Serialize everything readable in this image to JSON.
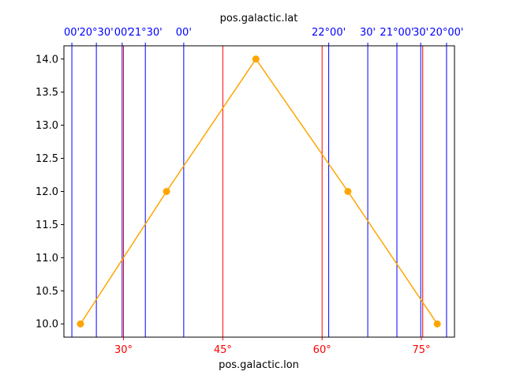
{
  "chart_data": {
    "type": "line",
    "title": "",
    "xlabel": "pos.galactic.lon",
    "top_axis_label": "pos.galactic.lat",
    "ylabel": "",
    "xlim": [
      21,
      80
    ],
    "ylim": [
      9.8,
      14.2
    ],
    "grid": false,
    "x_tick_labels": [
      "30°",
      "45°",
      "60°",
      "75°"
    ],
    "x_ticks": [
      30,
      45,
      60,
      75
    ],
    "y_ticks": [
      10.0,
      10.5,
      11.0,
      11.5,
      12.0,
      12.5,
      13.0,
      13.5,
      14.0
    ],
    "y_tick_labels": [
      "10.0",
      "10.5",
      "11.0",
      "11.5",
      "12.0",
      "12.5",
      "13.0",
      "13.5",
      "14.0"
    ],
    "red_grid_x": [
      30,
      45,
      60,
      75.2
    ],
    "blue_grid_x": [
      22.2,
      25.9,
      29.8,
      33.3,
      39.1,
      61.0,
      66.9,
      71.3,
      74.9,
      78.8
    ],
    "top_tick_labels": [
      {
        "text": "00'",
        "x": 22.2
      },
      {
        "text": "20°30'",
        "x": 25.9
      },
      {
        "text": "00'",
        "x": 29.8
      },
      {
        "text": "21°30'",
        "x": 33.3
      },
      {
        "text": "00'",
        "x": 39.1
      },
      {
        "text": "22°00'",
        "x": 61.0
      },
      {
        "text": "30'",
        "x": 66.9
      },
      {
        "text": "21°00'",
        "x": 71.3
      },
      {
        "text": "30'",
        "x": 74.9
      },
      {
        "text": "20°00'",
        "x": 78.8
      }
    ],
    "series": [
      {
        "x": [
          23.5,
          36.5,
          50.0,
          63.9,
          77.4
        ],
        "y": [
          10,
          12,
          14,
          12,
          10
        ]
      }
    ],
    "colors": {
      "series": "#ffa500",
      "red_ticks": "#ff0000",
      "blue_ticks": "#0000ff",
      "axes": "#000000"
    }
  }
}
